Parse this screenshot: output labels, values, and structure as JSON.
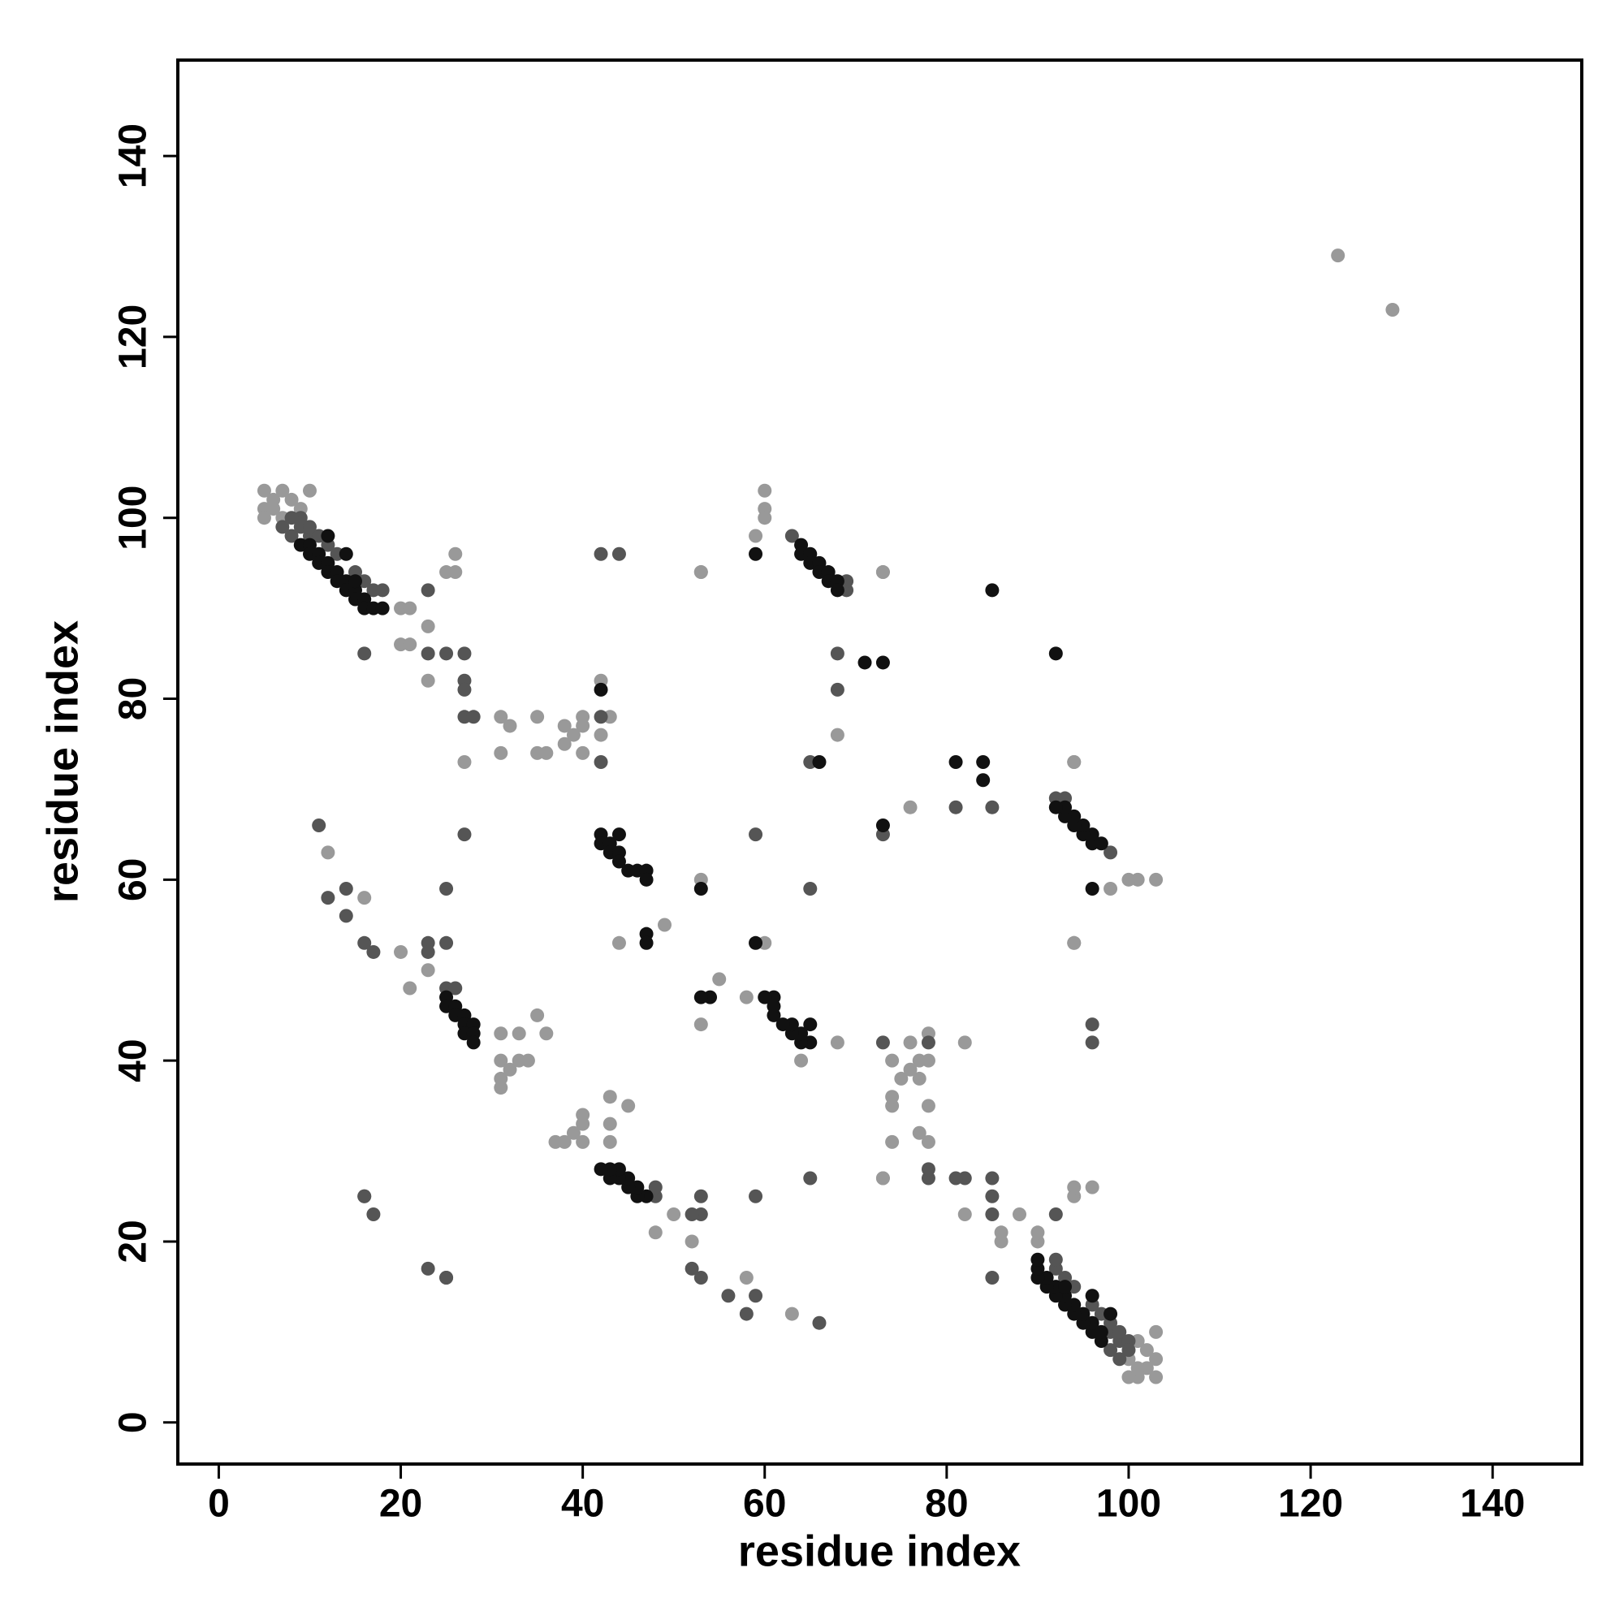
{
  "chart_data": {
    "type": "scatter",
    "xlabel": "residue index",
    "ylabel": "residue index",
    "xlim": [
      -4.5,
      149.8
    ],
    "ylim": [
      -4.6,
      150.6
    ],
    "xticks": [
      0,
      20,
      40,
      60,
      80,
      100,
      120,
      140
    ],
    "yticks": [
      0,
      20,
      40,
      60,
      80,
      100,
      120,
      140
    ],
    "series": [
      {
        "color": "#999999",
        "x": [
          5,
          5,
          5,
          6,
          6,
          7,
          7,
          8,
          9,
          10,
          103,
          101,
          100,
          102,
          101,
          103,
          100,
          102,
          101,
          103,
          20,
          21,
          20,
          21,
          23,
          23,
          25,
          26,
          26,
          27,
          90,
          90,
          86,
          86,
          88,
          82,
          94,
          96,
          94,
          73,
          31,
          32,
          31,
          35,
          35,
          36,
          38,
          38,
          39,
          40,
          78,
          77,
          74,
          78,
          74,
          74,
          77,
          75,
          76,
          74,
          40,
          40,
          42,
          43,
          42,
          12,
          16,
          20,
          21,
          23,
          78,
          77,
          82,
          78,
          76,
          63,
          58,
          52,
          48,
          50,
          31,
          33,
          35,
          31,
          31,
          32,
          33,
          34,
          36,
          31,
          43,
          43,
          45,
          40,
          38,
          39,
          40,
          40,
          43,
          37,
          60,
          60,
          60,
          59,
          53,
          73,
          68,
          94,
          94,
          55,
          103,
          101,
          100,
          98,
          94,
          94,
          76,
          73,
          53,
          49,
          44,
          53,
          53,
          58,
          60,
          64,
          68,
          73,
          123,
          129
        ],
        "values": [
          103,
          101,
          100,
          102,
          101,
          103,
          100,
          102,
          101,
          103,
          5,
          5,
          5,
          6,
          6,
          7,
          7,
          8,
          9,
          10,
          90,
          90,
          86,
          86,
          88,
          82,
          94,
          96,
          94,
          73,
          20,
          21,
          20,
          21,
          23,
          23,
          25,
          26,
          26,
          27,
          78,
          77,
          74,
          78,
          74,
          74,
          77,
          75,
          76,
          74,
          31,
          32,
          31,
          35,
          35,
          36,
          38,
          38,
          39,
          40,
          78,
          77,
          82,
          78,
          76,
          63,
          58,
          52,
          48,
          50,
          40,
          40,
          42,
          43,
          42,
          12,
          16,
          20,
          21,
          23,
          43,
          43,
          45,
          40,
          38,
          39,
          40,
          40,
          43,
          37,
          31,
          33,
          35,
          31,
          31,
          32,
          33,
          34,
          36,
          31,
          103,
          101,
          100,
          98,
          94,
          94,
          76,
          73,
          53,
          49,
          60,
          60,
          60,
          59,
          53,
          73,
          68,
          94,
          94,
          55,
          53,
          60,
          44,
          47,
          53,
          40,
          42,
          27,
          129,
          123
        ]
      },
      {
        "color": "#555555",
        "x": [
          9,
          10,
          11,
          12,
          13,
          15,
          16,
          17,
          18,
          16,
          99,
          98,
          98,
          97,
          96,
          94,
          93,
          92,
          92,
          85,
          23,
          23,
          25,
          27,
          27,
          27,
          27,
          28,
          27,
          11,
          92,
          85,
          85,
          85,
          82,
          81,
          78,
          78,
          65,
          66,
          12,
          14,
          14,
          16,
          17,
          23,
          23,
          25,
          25,
          25,
          58,
          59,
          56,
          53,
          52,
          53,
          52,
          53,
          59,
          48,
          42,
          42,
          44,
          26,
          63,
          69,
          69,
          68,
          68,
          65,
          73,
          78,
          96,
          48,
          98,
          92,
          93,
          85,
          81,
          73,
          99,
          100,
          98,
          99,
          100,
          16,
          23,
          25,
          96,
          59,
          10,
          9,
          8,
          7,
          8,
          25,
          17,
          16,
          42,
          65
        ],
        "values": [
          99,
          98,
          98,
          97,
          96,
          94,
          93,
          92,
          92,
          85,
          9,
          10,
          11,
          12,
          13,
          15,
          16,
          17,
          18,
          16,
          92,
          85,
          85,
          85,
          82,
          81,
          78,
          78,
          65,
          66,
          23,
          23,
          25,
          27,
          27,
          27,
          27,
          28,
          27,
          11,
          58,
          59,
          56,
          53,
          52,
          53,
          52,
          53,
          59,
          48,
          12,
          14,
          14,
          16,
          17,
          23,
          23,
          25,
          25,
          25,
          73,
          78,
          96,
          48,
          98,
          92,
          93,
          85,
          81,
          73,
          42,
          42,
          44,
          26,
          63,
          69,
          69,
          68,
          68,
          65,
          10,
          9,
          8,
          7,
          8,
          25,
          17,
          16,
          42,
          65,
          99,
          100,
          98,
          99,
          100,
          16,
          23,
          25,
          96,
          59
        ]
      },
      {
        "color": "#111111",
        "x": [
          9,
          10,
          10,
          11,
          11,
          12,
          12,
          13,
          13,
          14,
          14,
          15,
          15,
          16,
          16,
          17,
          18,
          12,
          14,
          15,
          97,
          97,
          96,
          96,
          95,
          95,
          94,
          94,
          93,
          93,
          92,
          92,
          91,
          91,
          90,
          90,
          90,
          98,
          96,
          93,
          42,
          42,
          43,
          43,
          44,
          44,
          44,
          45,
          46,
          47,
          65,
          64,
          64,
          63,
          65,
          63,
          62,
          61,
          61,
          61,
          25,
          25,
          26,
          26,
          27,
          27,
          28,
          27,
          28,
          28,
          47,
          46,
          46,
          45,
          45,
          44,
          44,
          43,
          43,
          42,
          64,
          64,
          65,
          65,
          66,
          66,
          67,
          67,
          68,
          68,
          97,
          96,
          96,
          95,
          95,
          94,
          94,
          93,
          93,
          92,
          42,
          73,
          81,
          84,
          73,
          66,
          84,
          71,
          92,
          85,
          53,
          59,
          47,
          54,
          53,
          47,
          60,
          47,
          96,
          59
        ],
        "values": [
          97,
          97,
          96,
          96,
          95,
          95,
          94,
          94,
          93,
          93,
          92,
          92,
          91,
          91,
          90,
          90,
          90,
          98,
          96,
          93,
          9,
          10,
          10,
          11,
          11,
          12,
          12,
          13,
          13,
          14,
          14,
          15,
          15,
          16,
          16,
          17,
          18,
          12,
          14,
          15,
          65,
          64,
          64,
          63,
          65,
          63,
          62,
          61,
          61,
          61,
          42,
          42,
          43,
          43,
          44,
          44,
          44,
          45,
          46,
          47,
          47,
          46,
          46,
          45,
          45,
          44,
          44,
          43,
          43,
          42,
          25,
          25,
          26,
          26,
          27,
          27,
          28,
          27,
          28,
          28,
          97,
          96,
          96,
          95,
          95,
          94,
          94,
          93,
          93,
          92,
          64,
          64,
          65,
          65,
          66,
          66,
          67,
          67,
          68,
          68,
          81,
          84,
          73,
          73,
          66,
          73,
          71,
          84,
          85,
          92,
          59,
          53,
          54,
          47,
          47,
          53,
          47,
          60,
          59,
          96
        ]
      }
    ]
  }
}
